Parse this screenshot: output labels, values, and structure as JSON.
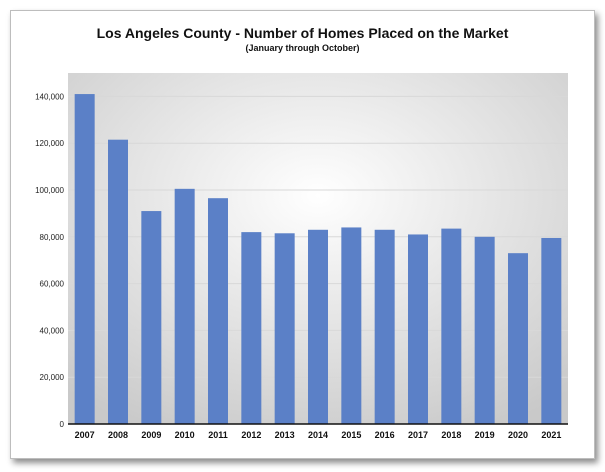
{
  "chart_data": {
    "type": "bar",
    "title": "Los Angeles County - Number of Homes Placed on the Market",
    "subtitle": "(January through October)",
    "xlabel": "",
    "ylabel": "",
    "categories": [
      "2007",
      "2008",
      "2009",
      "2010",
      "2011",
      "2012",
      "2013",
      "2014",
      "2015",
      "2016",
      "2017",
      "2018",
      "2019",
      "2020",
      "2021"
    ],
    "values": [
      141000,
      121500,
      91000,
      100500,
      96500,
      82000,
      81500,
      83000,
      84000,
      83000,
      81000,
      83500,
      80000,
      73000,
      79500
    ],
    "ylim": [
      0,
      150000
    ],
    "yticks": [
      0,
      20000,
      40000,
      60000,
      80000,
      100000,
      120000,
      140000
    ],
    "ytick_labels": [
      "0",
      "20,000",
      "40,000",
      "60,000",
      "80,000",
      "100,000",
      "120,000",
      "140,000"
    ],
    "grid": true,
    "legend": "none",
    "colors": {
      "bar": "#5b80c7",
      "plot_gradient_center": "#ffffff",
      "plot_gradient_edge": "#c9c9c9",
      "grid": "#d8d8d8",
      "axis": "#111111"
    }
  }
}
